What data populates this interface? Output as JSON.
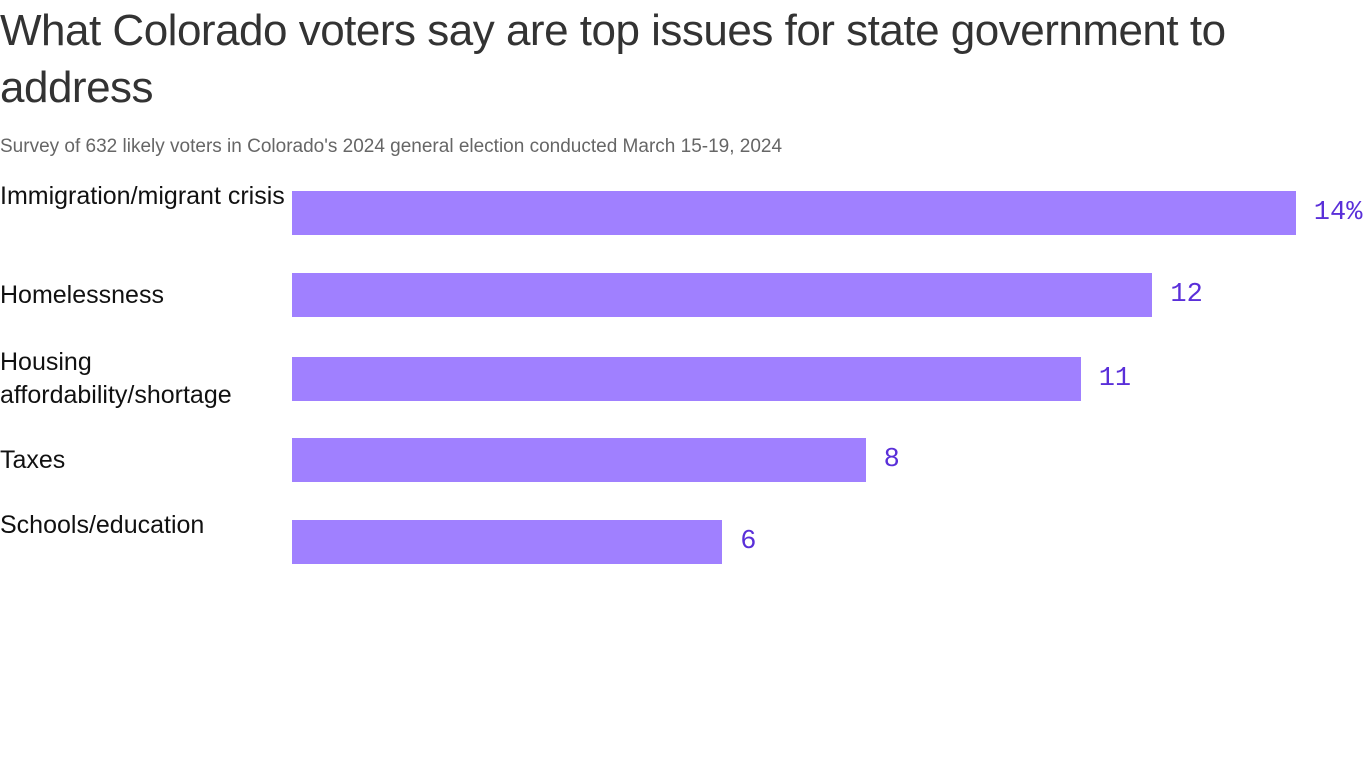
{
  "chart_data": {
    "type": "bar",
    "orientation": "horizontal",
    "title": "What Colorado voters say are top issues for state government to address",
    "subtitle": "Survey of 632 likely voters in Colorado's 2024 general election conducted March 15-19, 2024",
    "categories": [
      "Immigration/migrant crisis",
      "Homelessness",
      "Housing affordability/shortage",
      "Taxes",
      "Schools/education"
    ],
    "values": [
      14,
      12,
      11,
      8,
      6
    ],
    "data_labels": [
      "14%",
      "12",
      "11",
      "8",
      "6"
    ],
    "unit": "%",
    "bar_color": "#a080ff",
    "label_color": "#5a2fd9",
    "grid": false
  }
}
